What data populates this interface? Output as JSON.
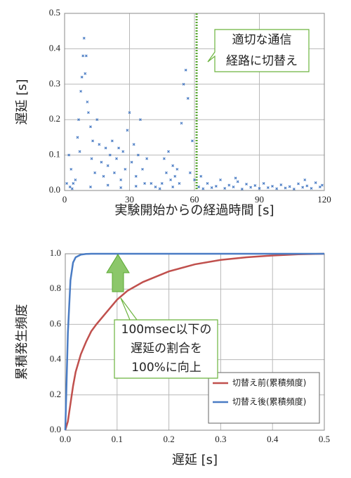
{
  "chart_data": [
    {
      "type": "scatter",
      "x_label": "実験開始からの経過時間 [s]",
      "y_label": "遅延 [s]",
      "color": "#4a7cc4",
      "xlim": [
        0,
        120
      ],
      "xticks": [
        0,
        30,
        60,
        90,
        120
      ],
      "ylim": [
        0,
        0.5
      ],
      "yticks": [
        {
          "value": 0,
          "label": "0.0"
        },
        0.1,
        0.2,
        0.3,
        0.4,
        0.5
      ],
      "grid": true,
      "vline": {
        "x": 61,
        "color": "#5aa832"
      },
      "annotation": [
        "適切な通信",
        "経路に切替え"
      ],
      "x": [
        1,
        2,
        2.5,
        3,
        4,
        5,
        6,
        6.5,
        7,
        7.5,
        8,
        8.5,
        9,
        9.5,
        10,
        10.5,
        11,
        12,
        12.5,
        13,
        14,
        15,
        16,
        17,
        18,
        19,
        20,
        21,
        22,
        23,
        24,
        25,
        26,
        27,
        28,
        29,
        30,
        31,
        32,
        33,
        34,
        35,
        36,
        37,
        38,
        40,
        42,
        45,
        46,
        47,
        48,
        49,
        50,
        51,
        52,
        53,
        54,
        55,
        56,
        57,
        58,
        59,
        60,
        3.5,
        12,
        20,
        26,
        33,
        44,
        50,
        62,
        64,
        66,
        68,
        70,
        72,
        74,
        76,
        78,
        80,
        82,
        84,
        86,
        88,
        90,
        92,
        94,
        96,
        98,
        100,
        102,
        104,
        106,
        108,
        110,
        112,
        114,
        116,
        118,
        119,
        63,
        79,
        111
      ],
      "values": [
        0.02,
        0.1,
        0.01,
        0.06,
        0.02,
        0.03,
        0.15,
        0.2,
        0.11,
        0.28,
        0.32,
        0.38,
        0.43,
        0.33,
        0.38,
        0.25,
        0.22,
        0.18,
        0.09,
        0.14,
        0.05,
        0.2,
        0.13,
        0.08,
        0.04,
        0.12,
        0.07,
        0.1,
        0.14,
        0.05,
        0.09,
        0.12,
        0.03,
        0.11,
        0.06,
        0.17,
        0.22,
        0.08,
        0.13,
        0.04,
        0.1,
        0.2,
        0.06,
        0.02,
        0.09,
        0.02,
        0.01,
        0.02,
        0.09,
        0.05,
        0.11,
        0.03,
        0.07,
        0.04,
        0.06,
        0.02,
        0.19,
        0.3,
        0.34,
        0.26,
        0.05,
        0.14,
        0.03,
        0.005,
        0.01,
        0.015,
        0.008,
        0.012,
        0.005,
        0.01,
        0.01,
        0.005,
        0.02,
        0.008,
        0.012,
        0.03,
        0.006,
        0.015,
        0.01,
        0.025,
        0.004,
        0.018,
        0.009,
        0.014,
        0.006,
        0.02,
        0.008,
        0.012,
        0.005,
        0.016,
        0.007,
        0.011,
        0.004,
        0.019,
        0.009,
        0.013,
        0.006,
        0.022,
        0.01,
        0.015,
        0.04,
        0.035,
        0.03
      ]
    },
    {
      "type": "line",
      "x_label": "遅延 [s]",
      "y_label": "累積発生頻度",
      "xlim": [
        0,
        0.5
      ],
      "xticks": [
        {
          "value": 0,
          "label": "0.0"
        },
        0.1,
        0.2,
        0.3,
        0.4,
        0.5
      ],
      "ylim": [
        0,
        1
      ],
      "yticks": [
        {
          "value": 0,
          "label": "0.0"
        },
        0.2,
        0.4,
        0.6,
        0.8,
        {
          "value": 1,
          "label": "1.0"
        }
      ],
      "grid": true,
      "legend": "lower right",
      "annotation": [
        "100msec以下の",
        "遅延の割合を",
        "100%に向上"
      ],
      "x": [
        0,
        0.005,
        0.01,
        0.015,
        0.02,
        0.03,
        0.04,
        0.05,
        0.06,
        0.08,
        0.1,
        0.12,
        0.15,
        0.2,
        0.25,
        0.3,
        0.35,
        0.4,
        0.45,
        0.5
      ],
      "series": [
        {
          "name": "切替え前(累積頻度)",
          "color": "#c0504d",
          "values": [
            0,
            0.05,
            0.15,
            0.25,
            0.33,
            0.43,
            0.5,
            0.56,
            0.6,
            0.67,
            0.74,
            0.79,
            0.84,
            0.9,
            0.94,
            0.965,
            0.98,
            0.99,
            0.997,
            1
          ]
        },
        {
          "name": "切替え後(累積頻度)",
          "color": "#4a7cc4",
          "values": [
            0,
            0.55,
            0.85,
            0.95,
            0.98,
            0.995,
            0.999,
            1,
            1,
            1,
            1,
            1,
            1,
            1,
            1,
            1,
            1,
            1,
            1,
            1
          ]
        }
      ]
    }
  ]
}
